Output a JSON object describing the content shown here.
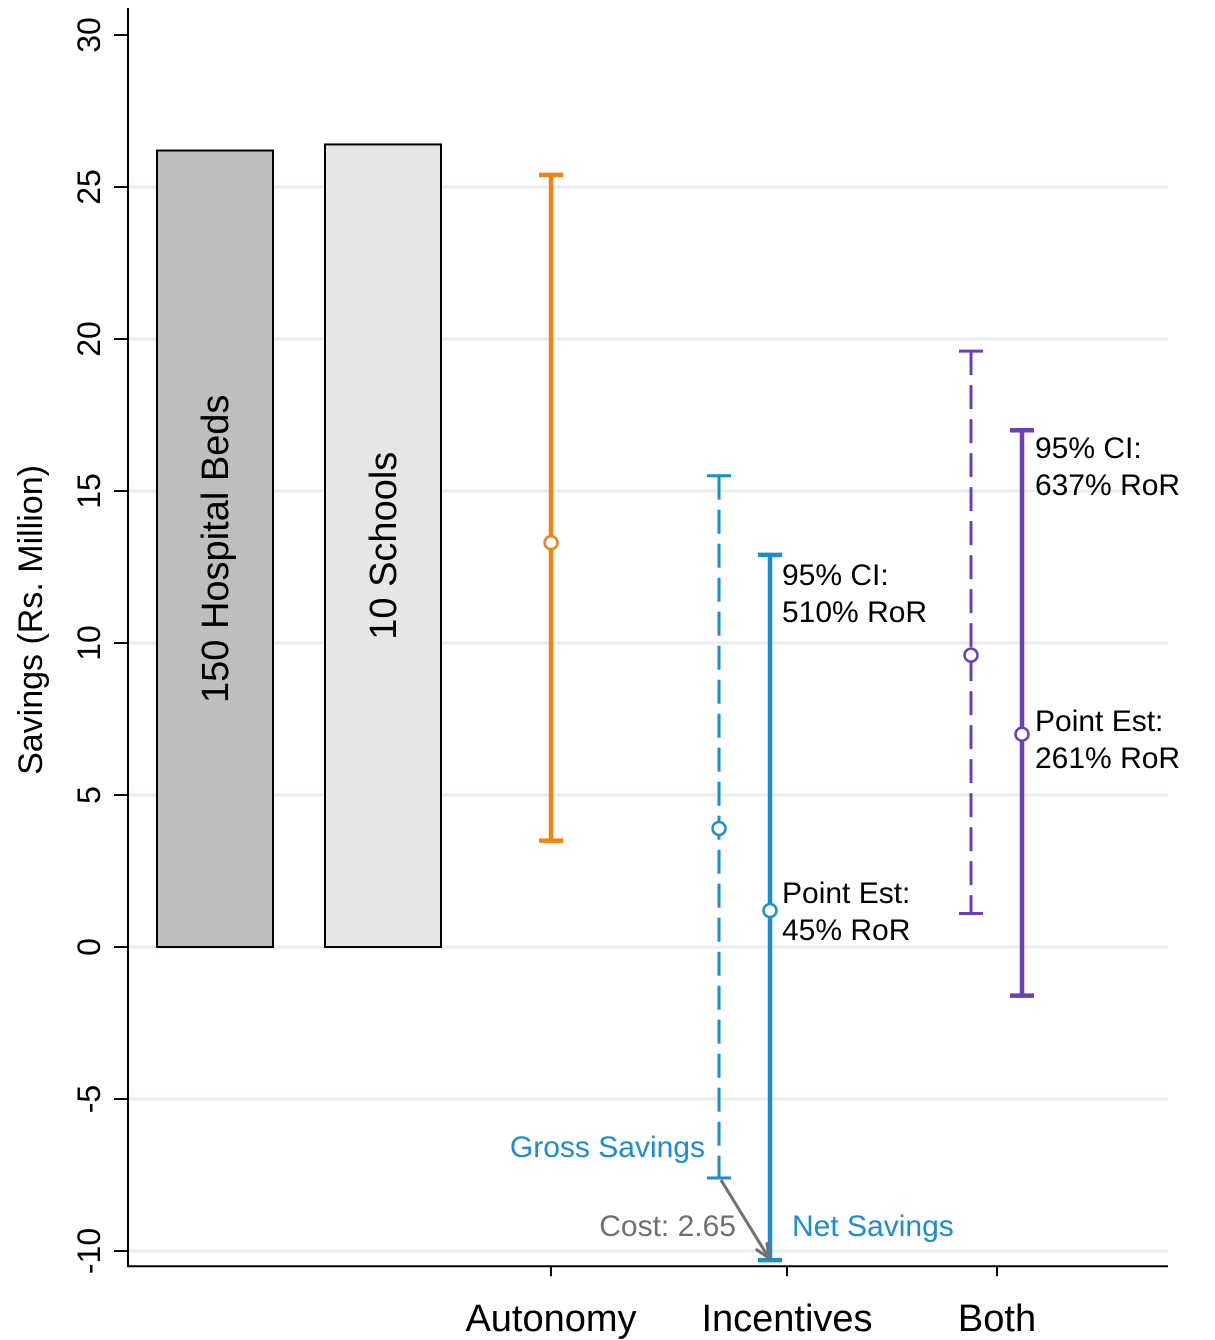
{
  "chart_data": {
    "type": "bar",
    "title": "",
    "xlabel": "",
    "ylabel": "Savings (Rs. Million)",
    "ylim": [
      -10.5,
      30.8
    ],
    "yticks": [
      -10,
      -5,
      0,
      5,
      10,
      15,
      20,
      25,
      30
    ],
    "ytick_labels": [
      "-10",
      "-5",
      "0",
      "5",
      "10",
      "15",
      "20",
      "25",
      "30"
    ],
    "grid": "horizontal",
    "gridlines": [
      -10,
      -5,
      0,
      5,
      10,
      15,
      20,
      25
    ],
    "categories": [
      "Autonomy",
      "Incentives",
      "Both"
    ],
    "reference_bars": [
      {
        "label": "150 Hospital Beds",
        "value": 26.2,
        "color": "#bebebe"
      },
      {
        "label": "10 Schools",
        "value": 26.4,
        "color": "#e6e6e6"
      }
    ],
    "intervals": [
      {
        "category": "Autonomy",
        "type": "gross",
        "point": 13.3,
        "low": 3.5,
        "high": 25.4,
        "color": "#f28211",
        "style": "solid"
      },
      {
        "category": "Incentives",
        "type": "gross",
        "point": 3.9,
        "low": -7.6,
        "high": 15.5,
        "color": "#1a8ed1",
        "style": "dashed"
      },
      {
        "category": "Incentives",
        "type": "net",
        "point": 1.2,
        "low": -10.3,
        "high": 12.9,
        "color": "#1a8ed1",
        "style": "solid"
      },
      {
        "category": "Both",
        "type": "gross",
        "point": 9.6,
        "low": 1.1,
        "high": 19.6,
        "color": "#6c3fb8",
        "style": "dashed"
      },
      {
        "category": "Both",
        "type": "net",
        "point": 7.0,
        "low": -1.6,
        "high": 17.0,
        "color": "#6c3fb8",
        "style": "solid"
      }
    ],
    "annotations": {
      "incentives_ci": [
        "95% CI:",
        "510% RoR"
      ],
      "incentives_point": [
        "Point Est:",
        "45% RoR"
      ],
      "both_ci": [
        "95% CI:",
        "637% RoR"
      ],
      "both_point": [
        "Point Est:",
        "261% RoR"
      ],
      "gross_savings": "Gross Savings",
      "net_savings": "Net Savings",
      "cost": "Cost: 2.65"
    },
    "colors": {
      "autonomy": "#f28211",
      "incentives": "#1a8ed1",
      "both": "#6c3fb8",
      "cost": "#707070",
      "grid": "#e8eeee"
    }
  }
}
